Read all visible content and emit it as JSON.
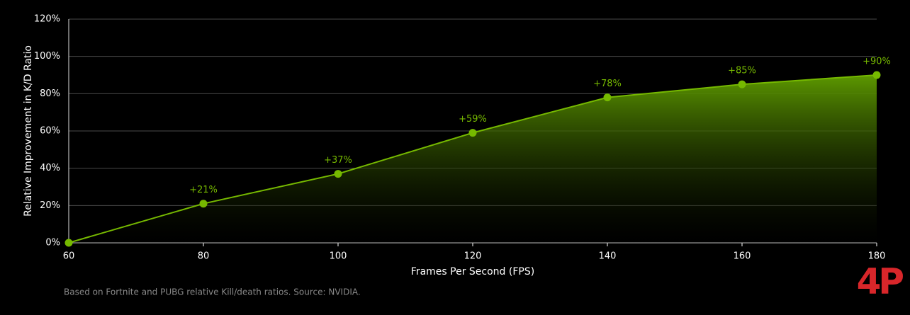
{
  "chart_data": {
    "type": "area",
    "x": [
      60,
      80,
      100,
      120,
      140,
      160,
      180
    ],
    "values": [
      0,
      21,
      37,
      59,
      78,
      85,
      90
    ],
    "value_labels": [
      null,
      "+21%",
      "+37%",
      "+59%",
      "+78%",
      "+85%",
      "+90%"
    ],
    "color": "#76b900",
    "xlim": [
      60,
      180
    ],
    "xticks": [
      60,
      80,
      100,
      120,
      140,
      160,
      180
    ],
    "ylim": [
      0,
      120
    ],
    "yticks": [
      {
        "value": 0,
        "label": "0%"
      },
      {
        "value": 20,
        "label": "20%"
      },
      {
        "value": 40,
        "label": "40%"
      },
      {
        "value": 60,
        "label": "60%"
      },
      {
        "value": 80,
        "label": "80%"
      },
      {
        "value": 100,
        "label": "100%"
      },
      {
        "value": 120,
        "label": "120%"
      }
    ],
    "grid": true,
    "x_label": "Frames Per Second (FPS)",
    "y_label": "Relative Improvement in K/D Ratio",
    "footnote": "Based on Fortnite and PUBG relative Kill/death ratios. Source: NVIDIA.",
    "logo": "4P"
  }
}
